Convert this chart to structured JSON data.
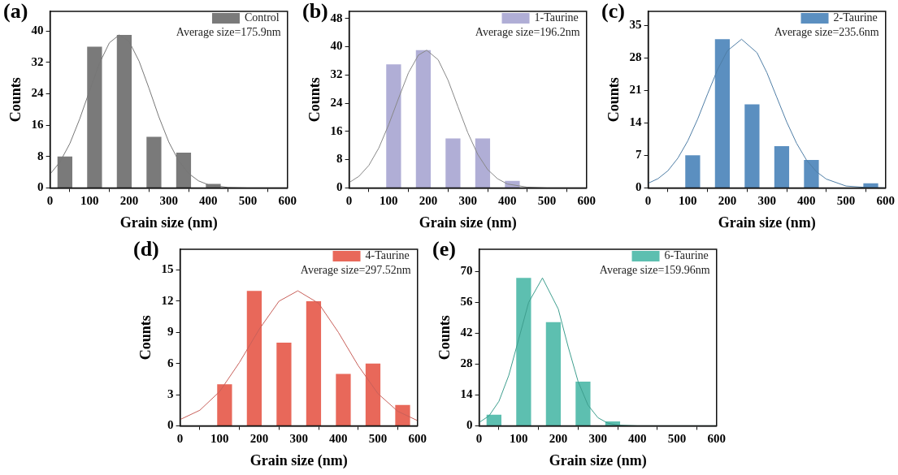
{
  "chart_data": [
    {
      "type": "bar",
      "title": "(a)",
      "xlabel": "Grain size (nm)",
      "ylabel": "Counts",
      "legend": "top right",
      "marker": "none",
      "annotations": [
        "Average size=175.9nm"
      ],
      "x": [
        37.5,
        112.5,
        187.5,
        262.5,
        337.5,
        412.5
      ],
      "xlim": [
        0,
        600
      ],
      "xticks": [
        0,
        100,
        200,
        300,
        400,
        500,
        600
      ],
      "ylim": [
        0,
        45
      ],
      "yticks": [
        0,
        8,
        16,
        24,
        32,
        40
      ],
      "series": [
        {
          "name": "Control",
          "color": "#7a7a7a",
          "values": [
            8,
            36,
            39,
            13,
            9,
            1
          ]
        },
        {
          "type": "line",
          "color": "#777777",
          "x": [
            0,
            25,
            50,
            75,
            100,
            125,
            150,
            175,
            200,
            225,
            250,
            275,
            300,
            325,
            350,
            375,
            400,
            450,
            500,
            600
          ],
          "values": [
            3.5,
            6.6,
            11.3,
            17.6,
            24.8,
            31.8,
            37.0,
            39,
            37.3,
            32.3,
            25.4,
            18.1,
            11.7,
            6.9,
            3.7,
            1.8,
            0.8,
            0.1,
            0,
            0
          ]
        }
      ]
    },
    {
      "type": "bar",
      "title": "(b)",
      "xlabel": "Grain size (nm)",
      "ylabel": "Counts",
      "legend": "top right",
      "marker": "none",
      "annotations": [
        "Average size=196.2nm"
      ],
      "x": [
        112.5,
        187.5,
        262.5,
        337.5,
        412.5
      ],
      "xlim": [
        0,
        600
      ],
      "xticks": [
        0,
        100,
        200,
        300,
        400,
        500,
        600
      ],
      "ylim": [
        0,
        50
      ],
      "yticks": [
        0,
        8,
        16,
        24,
        32,
        40,
        48
      ],
      "series": [
        {
          "name": "1-Taurine",
          "color": "#b0aed6",
          "values": [
            35,
            39,
            14,
            14,
            2
          ]
        },
        {
          "type": "line",
          "color": "#888888",
          "x": [
            0,
            25,
            50,
            75,
            100,
            125,
            150,
            175,
            196,
            225,
            250,
            275,
            300,
            325,
            350,
            375,
            400,
            450,
            500,
            600
          ],
          "values": [
            1.5,
            3.3,
            6.4,
            11.3,
            17.9,
            25.4,
            32.6,
            37.6,
            39,
            36.3,
            30.5,
            23.0,
            15.6,
            9.5,
            5.2,
            2.6,
            1.1,
            0.2,
            0,
            0
          ]
        }
      ]
    },
    {
      "type": "bar",
      "title": "(c)",
      "xlabel": "Grain size (nm)",
      "ylabel": "Counts",
      "legend": "top right",
      "marker": "none",
      "annotations": [
        "Average size=235.6nm"
      ],
      "x": [
        112.5,
        187.5,
        262.5,
        337.5,
        412.5,
        562.5
      ],
      "xlim": [
        0,
        600
      ],
      "xticks": [
        0,
        100,
        200,
        300,
        400,
        500,
        600
      ],
      "ylim": [
        0,
        38
      ],
      "yticks": [
        0,
        7,
        14,
        21,
        28,
        35
      ],
      "series": [
        {
          "name": "2-Taurine",
          "color": "#5b8fc0",
          "values": [
            7,
            32,
            18,
            9,
            6,
            1
          ]
        },
        {
          "type": "line",
          "color": "#4f7ea6",
          "x": [
            0,
            25,
            50,
            75,
            100,
            125,
            150,
            175,
            200,
            236,
            275,
            300,
            325,
            350,
            375,
            400,
            425,
            450,
            500,
            550,
            600
          ],
          "values": [
            1.0,
            2.0,
            3.7,
            6.4,
            10.1,
            14.8,
            20.2,
            25.4,
            29.5,
            32,
            29.1,
            24.8,
            19.5,
            14.2,
            9.6,
            6.0,
            3.5,
            1.9,
            0.4,
            0.1,
            0
          ]
        }
      ]
    },
    {
      "type": "bar",
      "title": "(d)",
      "xlabel": "Grain size (nm)",
      "ylabel": "Counts",
      "legend": "top right",
      "marker": "none",
      "annotations": [
        "Average size=297.52nm"
      ],
      "x": [
        112.5,
        187.5,
        262.5,
        337.5,
        412.5,
        487.5,
        562.5
      ],
      "xlim": [
        0,
        600
      ],
      "xticks": [
        0,
        100,
        200,
        300,
        400,
        500,
        600
      ],
      "ylim": [
        0,
        17
      ],
      "yticks": [
        0,
        3,
        6,
        9,
        12,
        15
      ],
      "series": [
        {
          "name": "4-Taurine",
          "color": "#e8685a",
          "values": [
            4,
            13,
            8,
            12,
            5,
            6,
            2
          ]
        },
        {
          "type": "line",
          "color": "#c8605a",
          "x": [
            0,
            50,
            100,
            150,
            200,
            250,
            297.5,
            350,
            400,
            450,
            500,
            550,
            600
          ],
          "values": [
            0.6,
            1.5,
            3.3,
            6.1,
            9.3,
            12.0,
            13,
            11.8,
            9.0,
            5.8,
            3.1,
            1.4,
            0.5
          ]
        }
      ]
    },
    {
      "type": "bar",
      "title": "(e)",
      "xlabel": "Grain size (nm)",
      "ylabel": "Counts",
      "legend": "top right",
      "marker": "none",
      "annotations": [
        "Average size=159.96nm"
      ],
      "x": [
        37.5,
        112.5,
        187.5,
        262.5,
        337.5
      ],
      "xlim": [
        0,
        600
      ],
      "xticks": [
        0,
        100,
        200,
        300,
        400,
        500,
        600
      ],
      "ylim": [
        0,
        80
      ],
      "yticks": [
        0,
        14,
        28,
        42,
        56,
        70
      ],
      "series": [
        {
          "name": "6-Taurine",
          "color": "#5dbfb0",
          "values": [
            5,
            67,
            47,
            20,
            2
          ]
        },
        {
          "type": "line",
          "color": "#3e9e8e",
          "x": [
            0,
            25,
            50,
            75,
            100,
            125,
            160,
            200,
            225,
            250,
            275,
            300,
            325,
            350,
            400,
            600
          ],
          "values": [
            1.5,
            4.5,
            11.1,
            22.9,
            39.3,
            55.9,
            67,
            52.9,
            35.8,
            20.1,
            9.4,
            3.7,
            1.2,
            0.3,
            0,
            0
          ]
        }
      ]
    }
  ]
}
